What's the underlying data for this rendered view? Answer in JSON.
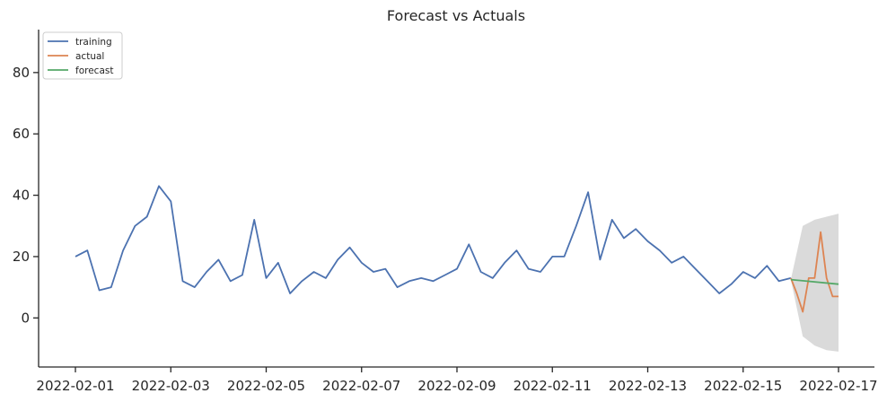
{
  "chart_data": {
    "type": "line",
    "title": "Forecast vs Actuals",
    "xlabel": "",
    "ylabel": "",
    "x_range": [
      "2022-02-01",
      "2022-02-17"
    ],
    "ylim": [
      -16,
      94
    ],
    "x_ticks": [
      "2022-02-01",
      "2022-02-03",
      "2022-02-05",
      "2022-02-07",
      "2022-02-09",
      "2022-02-11",
      "2022-02-13",
      "2022-02-15",
      "2022-02-17"
    ],
    "y_ticks": [
      0,
      20,
      40,
      60,
      80
    ],
    "grid": false,
    "legend_position": "top-left",
    "colors": {
      "training": "#4c72b0",
      "actual": "#dd8452",
      "forecast": "#55a868",
      "interval": "#d3d3d3"
    },
    "series": [
      {
        "name": "training",
        "x": [
          "2022-02-01",
          "2022-02-01 06:00",
          "2022-02-01 12:00",
          "2022-02-01 18:00",
          "2022-02-02",
          "2022-02-02 06:00",
          "2022-02-02 12:00",
          "2022-02-02 18:00",
          "2022-02-03",
          "2022-02-03 06:00",
          "2022-02-03 12:00",
          "2022-02-03 18:00",
          "2022-02-04",
          "2022-02-04 06:00",
          "2022-02-04 12:00",
          "2022-02-04 18:00",
          "2022-02-05",
          "2022-02-05 06:00",
          "2022-02-05 12:00",
          "2022-02-05 18:00",
          "2022-02-06",
          "2022-02-06 06:00",
          "2022-02-06 12:00",
          "2022-02-06 18:00",
          "2022-02-07",
          "2022-02-07 06:00",
          "2022-02-07 12:00",
          "2022-02-07 18:00",
          "2022-02-08",
          "2022-02-08 06:00",
          "2022-02-08 12:00",
          "2022-02-08 18:00",
          "2022-02-09",
          "2022-02-09 06:00",
          "2022-02-09 12:00",
          "2022-02-09 18:00",
          "2022-02-10",
          "2022-02-10 06:00",
          "2022-02-10 12:00",
          "2022-02-10 18:00",
          "2022-02-11",
          "2022-02-11 06:00",
          "2022-02-11 12:00",
          "2022-02-11 18:00",
          "2022-02-12",
          "2022-02-12 06:00",
          "2022-02-12 12:00",
          "2022-02-12 18:00",
          "2022-02-13",
          "2022-02-13 06:00",
          "2022-02-13 12:00",
          "2022-02-13 18:00",
          "2022-02-14",
          "2022-02-14 06:00",
          "2022-02-14 12:00",
          "2022-02-14 18:00",
          "2022-02-15",
          "2022-02-15 06:00",
          "2022-02-15 12:00",
          "2022-02-15 18:00",
          "2022-02-16"
        ],
        "values": [
          20,
          22,
          9,
          10,
          22,
          30,
          33,
          43,
          38,
          12,
          10,
          15,
          19,
          12,
          14,
          32,
          13,
          18,
          8,
          12,
          15,
          13,
          19,
          23,
          18,
          15,
          16,
          10,
          12,
          13,
          12,
          14,
          16,
          24,
          15,
          13,
          18,
          22,
          16,
          15,
          20,
          20,
          30,
          41,
          19,
          32,
          26,
          29,
          25,
          22,
          18,
          20,
          16,
          12,
          8,
          11,
          15,
          13,
          17,
          12,
          13
        ]
      },
      {
        "name": "actual",
        "x": [
          "2022-02-16",
          "2022-02-16 03:00",
          "2022-02-16 06:00",
          "2022-02-16 09:00",
          "2022-02-16 12:00",
          "2022-02-16 15:00",
          "2022-02-16 18:00",
          "2022-02-16 21:00",
          "2022-02-17"
        ],
        "values": [
          13,
          8,
          2,
          13,
          13,
          28,
          13,
          7,
          7
        ]
      },
      {
        "name": "forecast",
        "x": [
          "2022-02-16",
          "2022-02-17"
        ],
        "values": [
          12.5,
          11
        ]
      }
    ],
    "forecast_interval": {
      "x": [
        "2022-02-16",
        "2022-02-16 06:00",
        "2022-02-16 12:00",
        "2022-02-16 18:00",
        "2022-02-17"
      ],
      "lower": [
        12.5,
        -6,
        -9,
        -10.5,
        -11
      ],
      "upper": [
        12.5,
        30,
        32,
        33,
        34
      ]
    }
  }
}
